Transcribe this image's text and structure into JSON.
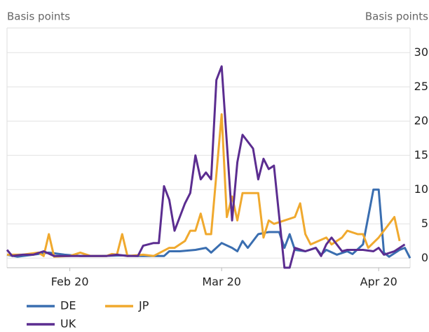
{
  "chart_data": {
    "type": "line",
    "y_label_left": "Basis points",
    "y_label_right": "Basis points",
    "xlim": [
      39,
      116
    ],
    "xticks": [
      {
        "value": 51,
        "label": "Feb 20"
      },
      {
        "value": 80,
        "label": "Mar 20"
      },
      {
        "value": 110,
        "label": "Apr 20"
      }
    ],
    "ylim": [
      -1.4,
      33.6
    ],
    "yticks": [
      0,
      5,
      10,
      15,
      20,
      25,
      30
    ],
    "grid": true,
    "legend": "bottom-left",
    "series": [
      {
        "name": "DE",
        "color": "#3a6eb0",
        "x": [
          39,
          41,
          44,
          47,
          50,
          53,
          57,
          61,
          64,
          66,
          69,
          70,
          72,
          75,
          77,
          78,
          80,
          82,
          83,
          84,
          85,
          87,
          89,
          91,
          92,
          93,
          94,
          96,
          98,
          99,
          100,
          102,
          104,
          105,
          107,
          109,
          110,
          111,
          112,
          114,
          115,
          116
        ],
        "values": [
          0.5,
          0.2,
          0.5,
          0.8,
          0.5,
          0.3,
          0.3,
          0.4,
          0.3,
          0.3,
          0.3,
          1,
          1,
          1.2,
          1.5,
          0.8,
          2.2,
          1.5,
          1,
          2.5,
          1.5,
          3.5,
          3.8,
          3.8,
          1.5,
          3.5,
          1.2,
          1,
          1.5,
          0.5,
          1.2,
          0.5,
          1,
          0.6,
          2,
          10,
          10,
          0.8,
          0.2,
          1.2,
          1.5,
          0
        ]
      },
      {
        "name": "JP",
        "color": "#f0a92e",
        "x": [
          39,
          42,
          45,
          46,
          47,
          48,
          51,
          53,
          55,
          58,
          59,
          60,
          61,
          62,
          65,
          67,
          70,
          71,
          73,
          74,
          75,
          76,
          77,
          78,
          80,
          81,
          82,
          83,
          84,
          87,
          88,
          89,
          90,
          92,
          94,
          95,
          96,
          97,
          100,
          101,
          102,
          103,
          104,
          106,
          107,
          108,
          110,
          113,
          114
        ],
        "values": [
          0.5,
          0.5,
          0.8,
          0.3,
          3.5,
          0.2,
          0.3,
          0.8,
          0.3,
          0.3,
          0.6,
          0.5,
          3.5,
          0.3,
          0.5,
          0.3,
          1.5,
          1.5,
          2.5,
          4,
          4,
          6.5,
          3.5,
          3.5,
          21,
          6,
          9,
          5.5,
          9.5,
          9.5,
          3,
          5.5,
          5,
          5.5,
          6,
          8,
          3.5,
          2,
          3,
          2,
          2.5,
          3,
          4,
          3.5,
          3.5,
          1.5,
          3,
          6,
          2.5
        ]
      },
      {
        "name": "UK",
        "color": "#5b2d90",
        "x": [
          39,
          40,
          42,
          44,
          46,
          48,
          53,
          58,
          60,
          62,
          64,
          65,
          67,
          68,
          69,
          70,
          71,
          73,
          74,
          75,
          76,
          77,
          78,
          79,
          80,
          82,
          83,
          84,
          86,
          87,
          88,
          89,
          90,
          92,
          93,
          94,
          96,
          98,
          99,
          100,
          101,
          103,
          104,
          107,
          109,
          110,
          111,
          113,
          115
        ],
        "values": [
          1.2,
          0.3,
          0.5,
          0.5,
          1,
          0.3,
          0.3,
          0.3,
          0.5,
          0.3,
          0.3,
          1.8,
          2.2,
          2.2,
          10.5,
          8.5,
          4,
          8,
          9.5,
          15,
          11.5,
          12.5,
          11.5,
          26,
          28,
          5.5,
          14,
          18,
          16,
          11.5,
          14.5,
          13,
          13.5,
          -1.4,
          -1.4,
          1.5,
          1,
          1.5,
          0.3,
          2,
          3,
          1,
          1.2,
          1.2,
          1,
          1.5,
          0.5,
          1,
          2
        ]
      }
    ]
  }
}
